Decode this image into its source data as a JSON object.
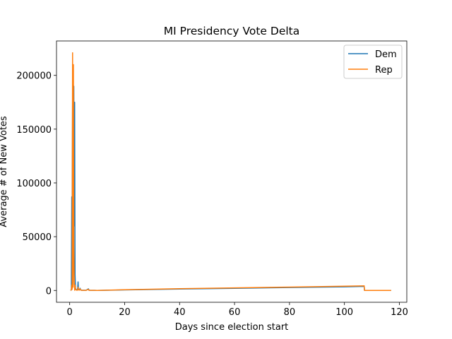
{
  "chart_data": {
    "type": "line",
    "title": "MI Presidency Vote Delta",
    "xlabel": "Days since election start",
    "ylabel": "Average # of New Votes",
    "xlim": [
      -4.8,
      122.7
    ],
    "ylim": [
      -11000,
      232000
    ],
    "xticks": [
      0,
      20,
      40,
      60,
      80,
      100,
      120
    ],
    "yticks": [
      0,
      50000,
      100000,
      150000,
      200000
    ],
    "legend_position": "top-right",
    "grid": false,
    "series": [
      {
        "name": "Dem",
        "color": "#1f77b4",
        "x": [
          0.3,
          0.6,
          0.75,
          0.9,
          1.05,
          1.2,
          1.35,
          1.5,
          1.65,
          1.8,
          1.95,
          2.1,
          2.3,
          2.5,
          2.7,
          2.9,
          3.05,
          3.2,
          3.5,
          3.8,
          4.0,
          4.2,
          4.5,
          5.0,
          6.0,
          6.8,
          7.0,
          7.3,
          8.0,
          9.0,
          10.0,
          20.0,
          40.0,
          60.0,
          80.0,
          100.0,
          107.2,
          107.3,
          117.0
        ],
        "y": [
          0,
          500,
          87000,
          72000,
          180000,
          5000,
          175000,
          190000,
          60000,
          175000,
          15000,
          2000,
          1000,
          500,
          300,
          2000,
          8000,
          1000,
          500,
          2000,
          500,
          300,
          200,
          200,
          200,
          1500,
          300,
          200,
          100,
          100,
          0,
          500,
          1300,
          2000,
          2700,
          3400,
          3800,
          0,
          0
        ]
      },
      {
        "name": "Rep",
        "color": "#ff7f0e",
        "x": [
          0.3,
          0.6,
          0.75,
          0.9,
          1.05,
          1.2,
          1.35,
          1.5,
          1.65,
          1.8,
          1.95,
          2.1,
          2.3,
          2.5,
          2.7,
          2.9,
          3.05,
          3.2,
          3.5,
          3.8,
          4.0,
          4.2,
          4.5,
          5.0,
          6.0,
          6.8,
          7.0,
          7.3,
          8.0,
          9.0,
          10.0,
          20.0,
          40.0,
          60.0,
          80.0,
          100.0,
          107.2,
          107.3,
          117.0
        ],
        "y": [
          0,
          500,
          5000,
          1000,
          221000,
          3000,
          210000,
          40000,
          8000,
          200,
          5000,
          1000,
          500,
          300,
          200,
          500,
          3000,
          500,
          300,
          1500,
          300,
          200,
          100,
          100,
          100,
          1000,
          200,
          100,
          100,
          100,
          0,
          700,
          1600,
          2400,
          3100,
          3900,
          4300,
          0,
          0
        ]
      }
    ]
  }
}
